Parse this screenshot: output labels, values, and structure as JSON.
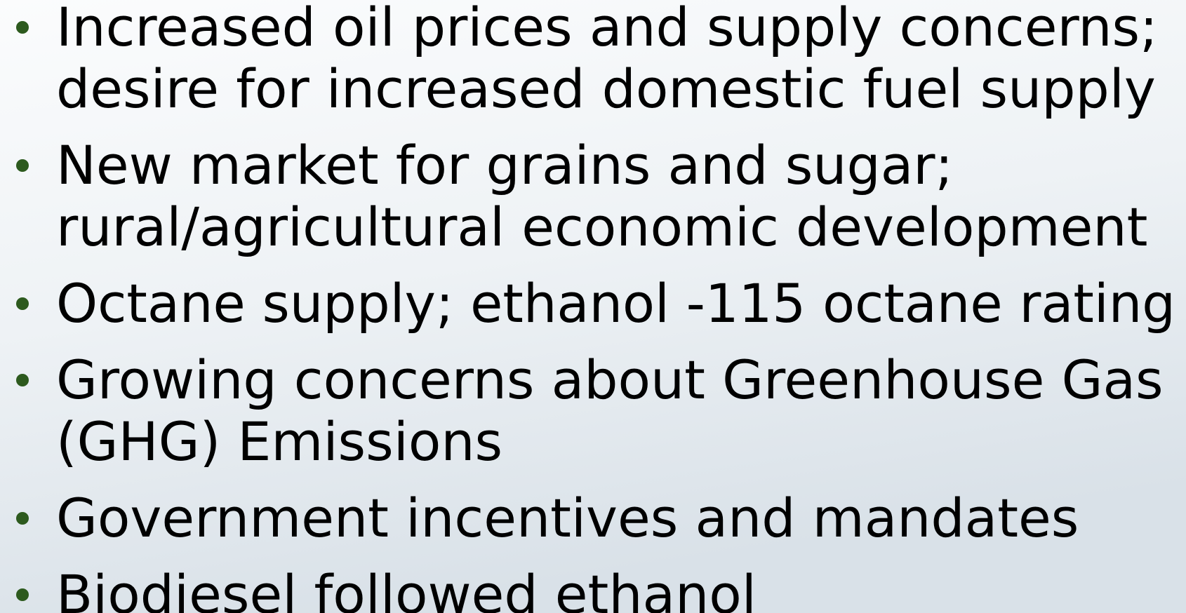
{
  "bullets": [
    {
      "lines": [
        "Increased oil prices and supply concerns;",
        "desire for increased domestic fuel supply"
      ]
    },
    {
      "lines": [
        "New market for grains and sugar;",
        "rural/agricultural economic development"
      ]
    },
    {
      "lines": [
        "Octane supply; ethanol -115 octane rating"
      ]
    },
    {
      "lines": [
        "Growing concerns about Greenhouse Gas",
        "(GHG) Emissions"
      ]
    },
    {
      "lines": [
        "Government incentives and mandates"
      ]
    },
    {
      "lines": [
        "Biodiesel followed ethanol"
      ]
    }
  ]
}
